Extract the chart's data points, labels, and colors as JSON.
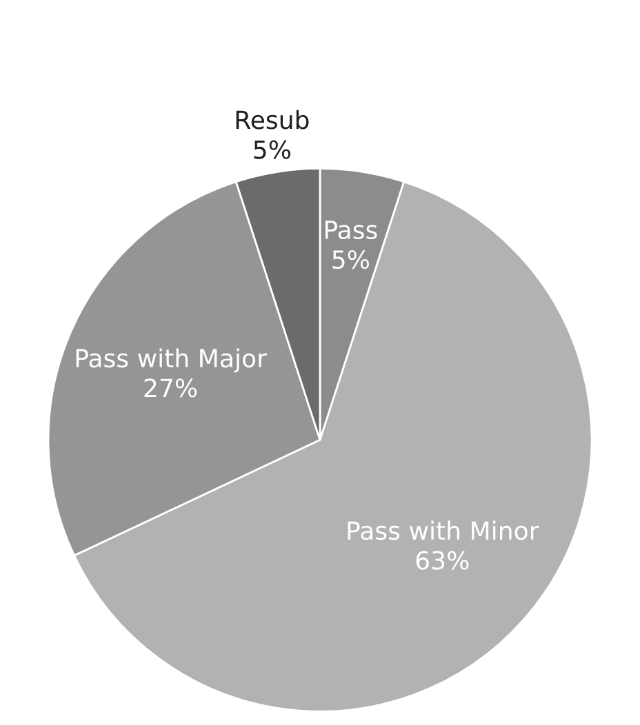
{
  "chart_data": {
    "type": "pie",
    "categories": [
      "Pass",
      "Pass with Minor",
      "Pass with Major",
      "Resub"
    ],
    "values": [
      5,
      63,
      27,
      5
    ],
    "colors": [
      "#8c8c8e",
      "#b2b2b4",
      "#959597",
      "#6b6b6d"
    ],
    "value_labels": [
      "5%",
      "63%",
      "27%",
      "5%"
    ]
  }
}
